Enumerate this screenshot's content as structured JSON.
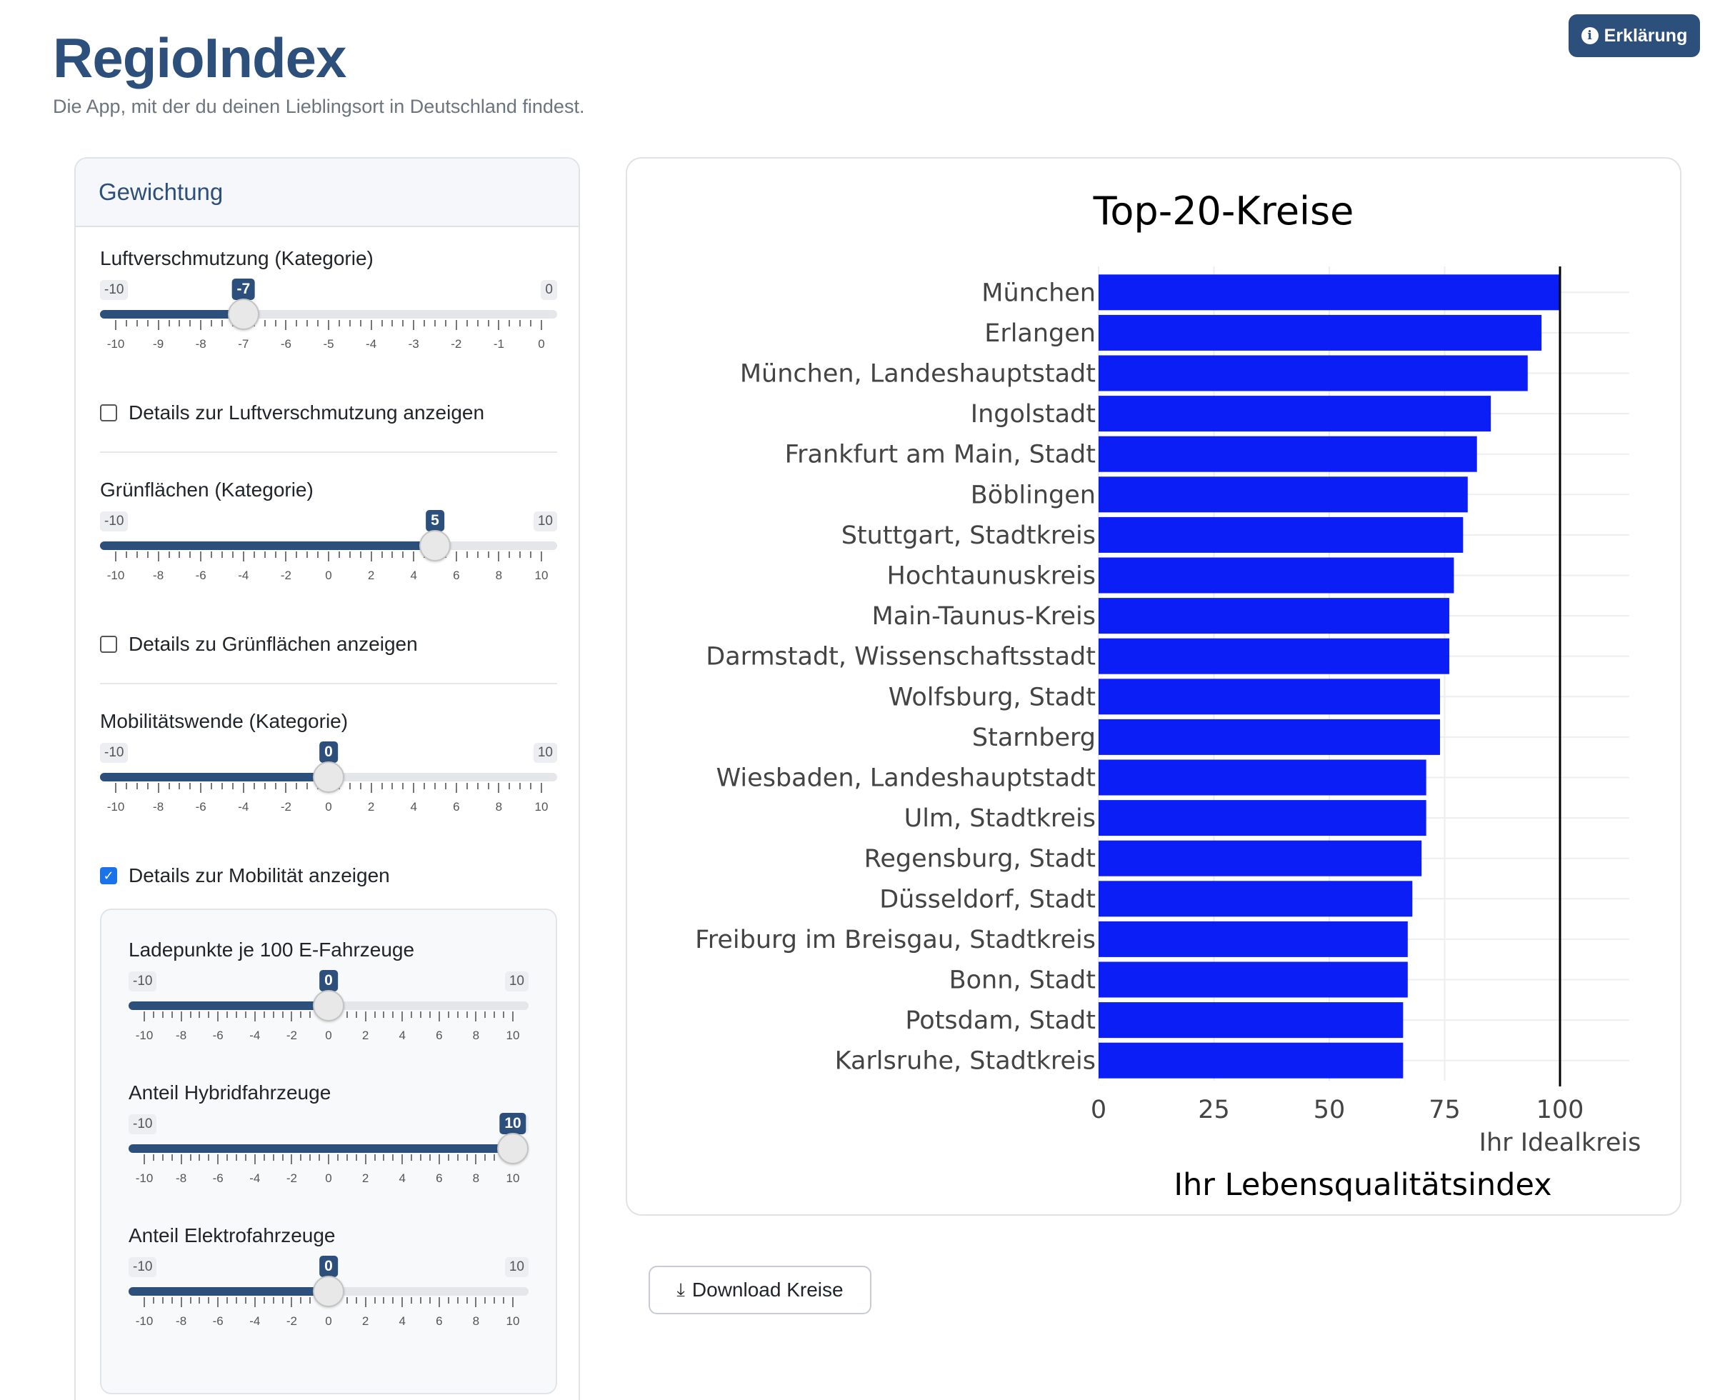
{
  "app": {
    "title": "RegioIndex",
    "subtitle": "Die App, mit der du deinen Lieblingsort in Deutschland findest.",
    "help_button": "Erklärung"
  },
  "sidebar": {
    "header": "Gewichtung",
    "sliders": [
      {
        "label": "Luftverschmutzung (Kategorie)",
        "min": -10,
        "max": 0,
        "value": -7,
        "min_label": "-10",
        "max_label": "0",
        "value_label": "-7",
        "tick_labels": [
          "-10",
          "-9",
          "-8",
          "-7",
          "-6",
          "-5",
          "-4",
          "-3",
          "-2",
          "-1",
          "0"
        ]
      },
      {
        "label": "Grünflächen (Kategorie)",
        "min": -10,
        "max": 10,
        "value": 5,
        "min_label": "-10",
        "max_label": "10",
        "value_label": "5",
        "tick_labels": [
          "-10",
          "-8",
          "-6",
          "-4",
          "-2",
          "0",
          "2",
          "4",
          "6",
          "8",
          "10"
        ]
      },
      {
        "label": "Mobilitätswende (Kategorie)",
        "min": -10,
        "max": 10,
        "value": 0,
        "min_label": "-10",
        "max_label": "10",
        "value_label": "0",
        "tick_labels": [
          "-10",
          "-8",
          "-6",
          "-4",
          "-2",
          "0",
          "2",
          "4",
          "6",
          "8",
          "10"
        ]
      }
    ],
    "checkboxes": [
      {
        "label": "Details zur Luftverschmutzung anzeigen",
        "checked": false
      },
      {
        "label": "Details zu Grünflächen anzeigen",
        "checked": false
      },
      {
        "label": "Details zur Mobilität anzeigen",
        "checked": true
      }
    ],
    "sub_sliders": [
      {
        "label": "Ladepunkte je 100 E-Fahrzeuge",
        "min": -10,
        "max": 10,
        "value": 0,
        "min_label": "-10",
        "max_label": "10",
        "value_label": "0",
        "tick_labels": [
          "-10",
          "-8",
          "-6",
          "-4",
          "-2",
          "0",
          "2",
          "4",
          "6",
          "8",
          "10"
        ]
      },
      {
        "label": "Anteil Hybridfahrzeuge",
        "min": -10,
        "max": 10,
        "value": 10,
        "min_label": "-10",
        "max_label": "10",
        "value_label": "10",
        "tick_labels": [
          "-10",
          "-8",
          "-6",
          "-4",
          "-2",
          "0",
          "2",
          "4",
          "6",
          "8",
          "10"
        ]
      },
      {
        "label": "Anteil Elektrofahrzeuge",
        "min": -10,
        "max": 10,
        "value": 0,
        "min_label": "-10",
        "max_label": "10",
        "value_label": "0",
        "tick_labels": [
          "-10",
          "-8",
          "-6",
          "-4",
          "-2",
          "0",
          "2",
          "4",
          "6",
          "8",
          "10"
        ]
      }
    ]
  },
  "download_button": "Download Kreise",
  "colors": {
    "accent": "#2c4f7c",
    "bar": "#0a1ef5",
    "checkbox": "#1a73e8"
  },
  "chart_data": {
    "type": "bar",
    "orientation": "horizontal",
    "title": "Top-20-Kreise",
    "xlabel": "Ihr Lebensqualitätsindex",
    "xlim": [
      0,
      115
    ],
    "x_ticks": [
      "0",
      "25",
      "50",
      "75",
      "100"
    ],
    "reference_line": {
      "value": 100,
      "label": "Ihr Idealkreis"
    },
    "grid": true,
    "categories": [
      "München",
      "Erlangen",
      "München, Landeshauptstadt",
      "Ingolstadt",
      "Frankfurt am Main, Stadt",
      "Böblingen",
      "Stuttgart, Stadtkreis",
      "Hochtaunuskreis",
      "Main-Taunus-Kreis",
      "Darmstadt, Wissenschaftsstadt",
      "Wolfsburg, Stadt",
      "Starnberg",
      "Wiesbaden, Landeshauptstadt",
      "Ulm, Stadtkreis",
      "Regensburg, Stadt",
      "Düsseldorf, Stadt",
      "Freiburg im Breisgau, Stadtkreis",
      "Bonn, Stadt",
      "Potsdam, Stadt",
      "Karlsruhe, Stadtkreis"
    ],
    "values": [
      100,
      96,
      93,
      85,
      82,
      80,
      79,
      77,
      76,
      76,
      74,
      74,
      71,
      71,
      70,
      68,
      67,
      67,
      66,
      66
    ]
  }
}
